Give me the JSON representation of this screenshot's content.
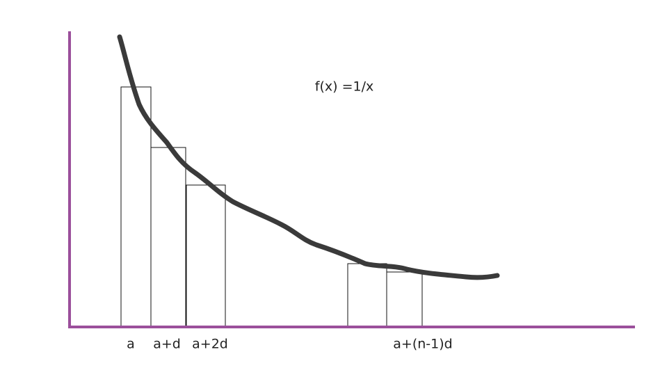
{
  "annotation": "f(x) =1/x",
  "labels": [
    "a",
    "a+d",
    "a+2d",
    "a+(n-1)d"
  ]
}
